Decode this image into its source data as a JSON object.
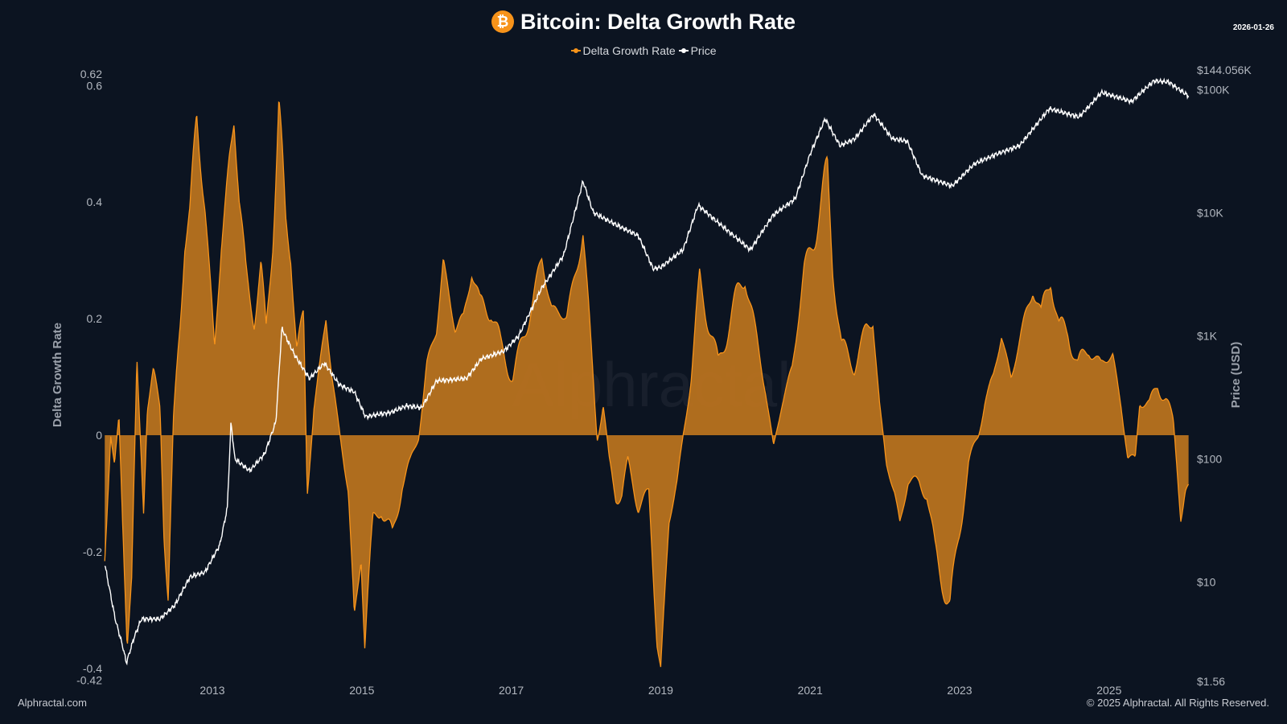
{
  "header": {
    "title": "Bitcoin: Delta Growth Rate",
    "logo_glyph": "₿",
    "date": "2026-01-26"
  },
  "footer": {
    "left": "Alphractal.com",
    "right": "© 2025 Alphractal. All Rights Reserved."
  },
  "watermark": "Alphractal",
  "colors": {
    "background": "#0c1421",
    "dgr": "#f7931a",
    "dgr_fill": "#b8721f",
    "price": "#ffffff"
  },
  "chart_data": {
    "type": "area",
    "title": "Bitcoin: Delta Growth Rate",
    "legend": [
      "Delta Growth Rate",
      "Price"
    ],
    "legend_position": "top",
    "grid": false,
    "x_ticks": [
      "2013",
      "2015",
      "2017",
      "2019",
      "2021",
      "2023",
      "2025"
    ],
    "y_left": {
      "label": "Delta Growth Rate",
      "range": [
        -0.42,
        0.62
      ],
      "ticks": [
        "0.62",
        "0.6",
        "0.4",
        "0.2",
        "0",
        "-0.2",
        "-0.4",
        "-0.42"
      ]
    },
    "y_right": {
      "label": "Price (USD)",
      "scale": "log",
      "range": [
        1.56,
        144056
      ],
      "ticks": [
        "$144.056K",
        "$100K",
        "$10K",
        "$1K",
        "$100",
        "$10",
        "$1.56"
      ]
    },
    "series": [
      {
        "name": "Delta Growth Rate",
        "type": "area",
        "x": [
          2011.56,
          2011.64,
          2011.69,
          2011.75,
          2011.8,
          2011.86,
          2011.92,
          2011.99,
          2012.08,
          2012.13,
          2012.21,
          2012.3,
          2012.35,
          2012.41,
          2012.48,
          2012.57,
          2012.63,
          2012.7,
          2012.79,
          2012.9,
          2013.03,
          2013.12,
          2013.23,
          2013.29,
          2013.36,
          2013.45,
          2013.56,
          2013.65,
          2013.72,
          2013.81,
          2013.89,
          2013.98,
          2014.05,
          2014.13,
          2014.22,
          2014.27,
          2014.36,
          2014.44,
          2014.52,
          2014.6,
          2014.71,
          2014.82,
          2014.9,
          2014.99,
          2015.04,
          2015.15,
          2015.26,
          2015.41,
          2015.54,
          2015.65,
          2015.76,
          2015.87,
          2016.0,
          2016.09,
          2016.25,
          2016.36,
          2016.47,
          2016.58,
          2016.73,
          2016.86,
          2017.02,
          2017.19,
          2017.41,
          2017.54,
          2017.74,
          2017.96,
          2018.04,
          2018.15,
          2018.23,
          2018.31,
          2018.4,
          2018.48,
          2018.56,
          2018.7,
          2018.84,
          2018.95,
          2019.0,
          2019.11,
          2019.22,
          2019.3,
          2019.41,
          2019.52,
          2019.63,
          2019.77,
          2019.93,
          2020.13,
          2020.26,
          2020.4,
          2020.51,
          2020.62,
          2020.76,
          2020.92,
          2021.07,
          2021.23,
          2021.3,
          2021.42,
          2021.59,
          2021.75,
          2021.84,
          2021.93,
          2022.02,
          2022.13,
          2022.2,
          2022.31,
          2022.46,
          2022.56,
          2022.67,
          2022.78,
          2022.87,
          2022.98,
          2023.12,
          2023.25,
          2023.34,
          2023.45,
          2023.56,
          2023.69,
          2023.84,
          2023.98,
          2024.09,
          2024.22,
          2024.33,
          2024.45,
          2024.58,
          2024.73,
          2024.89,
          2025.05,
          2025.16,
          2025.25,
          2025.35,
          2025.41,
          2025.54,
          2025.65,
          2025.76,
          2025.86,
          2025.91,
          2025.96,
          2026.02,
          2026.07
        ],
        "values": [
          -0.22,
          0.0,
          -0.05,
          0.03,
          -0.15,
          -0.35,
          -0.25,
          0.12,
          -0.12,
          0.05,
          0.1,
          0.05,
          -0.15,
          -0.28,
          0.02,
          0.2,
          0.34,
          0.38,
          0.54,
          0.4,
          0.15,
          0.32,
          0.48,
          0.55,
          0.4,
          0.28,
          0.2,
          0.28,
          0.18,
          0.35,
          0.56,
          0.36,
          0.32,
          0.15,
          0.2,
          -0.1,
          0.05,
          0.12,
          0.2,
          0.1,
          0.0,
          -0.1,
          -0.32,
          -0.2,
          -0.35,
          -0.15,
          -0.12,
          -0.18,
          -0.08,
          -0.05,
          0.0,
          0.12,
          0.18,
          0.3,
          0.18,
          0.2,
          0.29,
          0.22,
          0.22,
          0.15,
          0.1,
          0.18,
          0.3,
          0.22,
          0.2,
          0.35,
          0.2,
          0.0,
          0.05,
          -0.05,
          -0.1,
          -0.1,
          -0.05,
          -0.12,
          -0.1,
          -0.35,
          -0.4,
          -0.15,
          -0.08,
          0.0,
          0.1,
          0.27,
          0.2,
          0.12,
          0.2,
          0.28,
          0.18,
          0.08,
          -0.02,
          0.05,
          0.12,
          0.28,
          0.35,
          0.45,
          0.3,
          0.15,
          0.12,
          0.18,
          0.2,
          0.05,
          -0.05,
          -0.1,
          -0.15,
          -0.08,
          -0.08,
          -0.1,
          -0.2,
          -0.25,
          -0.3,
          -0.18,
          -0.05,
          0.0,
          0.06,
          0.1,
          0.17,
          0.1,
          0.18,
          0.26,
          0.2,
          0.28,
          0.18,
          0.18,
          0.12,
          0.15,
          0.12,
          0.14,
          0.05,
          -0.04,
          -0.04,
          0.06,
          0.05,
          0.09,
          0.06,
          0.02,
          -0.05,
          -0.13,
          -0.1,
          -0.1
        ]
      },
      {
        "name": "Price",
        "type": "line",
        "axis": "right",
        "x": [
          2011.56,
          2011.7,
          2011.8,
          2011.85,
          2011.95,
          2012.05,
          2012.3,
          2012.5,
          2012.7,
          2012.9,
          2013.1,
          2013.2,
          2013.25,
          2013.3,
          2013.5,
          2013.7,
          2013.85,
          2013.93,
          2014.1,
          2014.3,
          2014.5,
          2014.7,
          2014.9,
          2015.05,
          2015.4,
          2015.6,
          2015.8,
          2016.0,
          2016.4,
          2016.6,
          2016.9,
          2017.1,
          2017.4,
          2017.7,
          2017.96,
          2018.1,
          2018.4,
          2018.7,
          2018.9,
          2019.0,
          2019.3,
          2019.5,
          2019.8,
          2020.2,
          2020.5,
          2020.8,
          2021.0,
          2021.2,
          2021.4,
          2021.6,
          2021.85,
          2022.1,
          2022.3,
          2022.5,
          2022.9,
          2023.2,
          2023.5,
          2023.8,
          2024.2,
          2024.6,
          2024.9,
          2025.3,
          2025.6,
          2025.8,
          2026.07
        ],
        "values": [
          14,
          5,
          3,
          2.2,
          3.5,
          5,
          5,
          6.5,
          11,
          12,
          20,
          40,
          200,
          100,
          80,
          110,
          200,
          1150,
          700,
          450,
          600,
          400,
          350,
          220,
          240,
          270,
          260,
          430,
          450,
          650,
          750,
          1000,
          2400,
          4500,
          18000,
          10000,
          8000,
          6500,
          3500,
          3600,
          5000,
          11500,
          8000,
          5000,
          9500,
          13000,
          30000,
          58000,
          35000,
          40000,
          63000,
          40000,
          38000,
          20000,
          16500,
          25000,
          30000,
          35000,
          70000,
          60000,
          95000,
          80000,
          118000,
          115000,
          88000
        ]
      }
    ]
  }
}
